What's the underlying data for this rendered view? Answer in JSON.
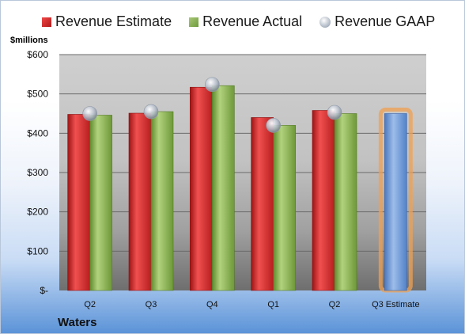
{
  "chart_data": {
    "type": "bar",
    "ylabel": "$millions",
    "xlabel": "Waters",
    "categories": [
      "Q2",
      "Q3",
      "Q4",
      "Q1",
      "Q2",
      "Q3 Estimate"
    ],
    "series": [
      {
        "name": "Revenue Estimate",
        "values": [
          448,
          451,
          517,
          440,
          458,
          null
        ],
        "color": "#d42a2a"
      },
      {
        "name": "Revenue Actual",
        "values": [
          446,
          455,
          521,
          420,
          450,
          450
        ],
        "color": "#8db356"
      },
      {
        "name": "Revenue GAAP",
        "values": [
          450,
          455,
          524,
          420,
          453,
          null
        ],
        "color": "#b8c0cc"
      }
    ],
    "highlight": {
      "category_index": 5,
      "color": "#6f9ad6",
      "glow": "#f0a050"
    },
    "ylim": [
      0,
      600
    ],
    "yticks": [
      0,
      100,
      200,
      300,
      400,
      500,
      600
    ],
    "ytick_labels": [
      "$-",
      "$100",
      "$200",
      "$300",
      "$400",
      "$500",
      "$600"
    ],
    "legend_position": "top",
    "grid": true
  }
}
